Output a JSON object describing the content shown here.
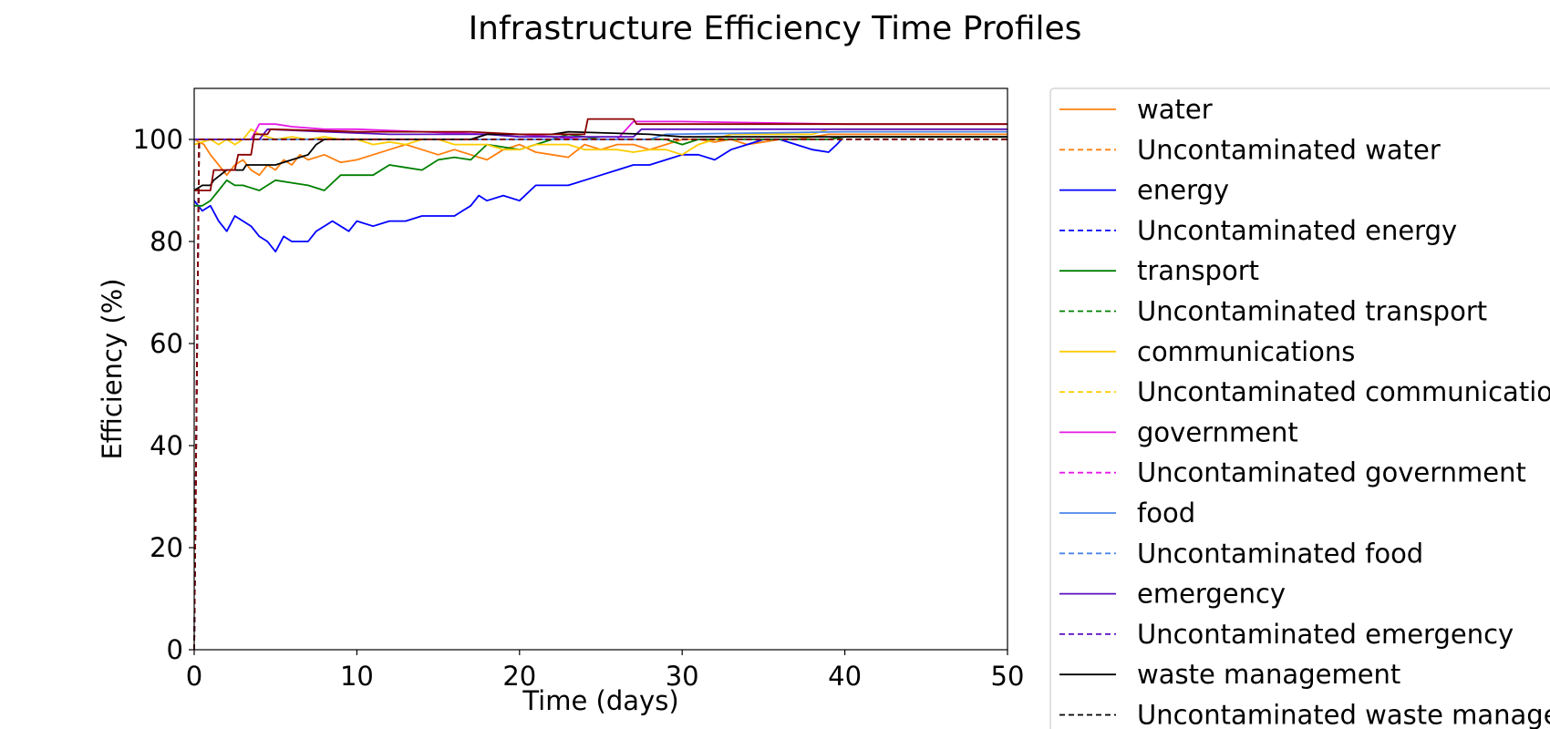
{
  "chart_data": {
    "type": "line",
    "title": "Infrastructure Efficiency Time Profiles",
    "xlabel": "Time (days)",
    "ylabel": "Efficiency (%)",
    "xlim": [
      0,
      50
    ],
    "ylim": [
      0,
      110
    ],
    "xticks": [
      0,
      10,
      20,
      30,
      40,
      50
    ],
    "yticks": [
      0,
      20,
      40,
      60,
      80,
      100
    ],
    "grid": false,
    "legend_position": "right, outside plot",
    "series": [
      {
        "name": "water",
        "color": "#ff7f0e",
        "dash": false,
        "points": [
          [
            0,
            100
          ],
          [
            0.6,
            99
          ],
          [
            1,
            97
          ],
          [
            1.5,
            95
          ],
          [
            2,
            93
          ],
          [
            2.5,
            95
          ],
          [
            3,
            96
          ],
          [
            3.5,
            94
          ],
          [
            4,
            93
          ],
          [
            4.5,
            95
          ],
          [
            5,
            94
          ],
          [
            5.5,
            96
          ],
          [
            6,
            95
          ],
          [
            6.5,
            97
          ],
          [
            7,
            96
          ],
          [
            8,
            97
          ],
          [
            9,
            95.5
          ],
          [
            10,
            96
          ],
          [
            11,
            97
          ],
          [
            12,
            98
          ],
          [
            13,
            99
          ],
          [
            14,
            98
          ],
          [
            15,
            97
          ],
          [
            16,
            98
          ],
          [
            17,
            97
          ],
          [
            18,
            96
          ],
          [
            19,
            98
          ],
          [
            20,
            99
          ],
          [
            21,
            97.5
          ],
          [
            22,
            97
          ],
          [
            23,
            96.5
          ],
          [
            24,
            99
          ],
          [
            25,
            98
          ],
          [
            26,
            99
          ],
          [
            27,
            99
          ],
          [
            28,
            98
          ],
          [
            29,
            99
          ],
          [
            30,
            100
          ],
          [
            31,
            100
          ],
          [
            32,
            99.5
          ],
          [
            33,
            100
          ],
          [
            34,
            99
          ],
          [
            35,
            99.5
          ],
          [
            36,
            100
          ],
          [
            37,
            100
          ],
          [
            38,
            100.5
          ],
          [
            39,
            101
          ],
          [
            40,
            101
          ],
          [
            50,
            101
          ]
        ]
      },
      {
        "name": "Uncontaminated water",
        "color": "#ff7f0e",
        "dash": true,
        "points": [
          [
            0,
            0
          ],
          [
            0.3,
            100
          ],
          [
            50,
            100
          ]
        ]
      },
      {
        "name": "energy",
        "color": "#0000ff",
        "dash": false,
        "points": [
          [
            0,
            88
          ],
          [
            0.5,
            86
          ],
          [
            1,
            87
          ],
          [
            1.5,
            84
          ],
          [
            2,
            82
          ],
          [
            2.5,
            85
          ],
          [
            3,
            84
          ],
          [
            3.5,
            83
          ],
          [
            4,
            81
          ],
          [
            4.5,
            80
          ],
          [
            5,
            78
          ],
          [
            5.5,
            81
          ],
          [
            6,
            80
          ],
          [
            6.5,
            80
          ],
          [
            7,
            80
          ],
          [
            7.5,
            82
          ],
          [
            8,
            83
          ],
          [
            8.5,
            84
          ],
          [
            9,
            83
          ],
          [
            9.5,
            82
          ],
          [
            10,
            84
          ],
          [
            11,
            83
          ],
          [
            12,
            84
          ],
          [
            13,
            84
          ],
          [
            14,
            85
          ],
          [
            15,
            85
          ],
          [
            16,
            85
          ],
          [
            17,
            87
          ],
          [
            17.5,
            89
          ],
          [
            18,
            88
          ],
          [
            19,
            89
          ],
          [
            20,
            88
          ],
          [
            21,
            91
          ],
          [
            22,
            91
          ],
          [
            23,
            91
          ],
          [
            24,
            92
          ],
          [
            25,
            93
          ],
          [
            26,
            94
          ],
          [
            27,
            95
          ],
          [
            28,
            95
          ],
          [
            29,
            96
          ],
          [
            30,
            97
          ],
          [
            31,
            97
          ],
          [
            32,
            96
          ],
          [
            33,
            98
          ],
          [
            34,
            99
          ],
          [
            35,
            100
          ],
          [
            36,
            100
          ],
          [
            37,
            99
          ],
          [
            38,
            98
          ],
          [
            39,
            97.5
          ],
          [
            39.5,
            99
          ],
          [
            39.8,
            100
          ]
        ]
      },
      {
        "name": "Uncontaminated energy",
        "color": "#0000ff",
        "dash": true,
        "points": [
          [
            0,
            0
          ],
          [
            0.3,
            100
          ],
          [
            50,
            100
          ]
        ]
      },
      {
        "name": "transport",
        "color": "#008000",
        "dash": false,
        "points": [
          [
            0,
            87
          ],
          [
            0.5,
            87
          ],
          [
            1,
            88
          ],
          [
            1.5,
            90
          ],
          [
            2,
            92
          ],
          [
            2.5,
            91
          ],
          [
            3,
            91
          ],
          [
            3.5,
            90.5
          ],
          [
            4,
            90
          ],
          [
            5,
            92
          ],
          [
            6,
            91.5
          ],
          [
            7,
            91
          ],
          [
            8,
            90
          ],
          [
            9,
            93
          ],
          [
            10,
            93
          ],
          [
            11,
            93
          ],
          [
            12,
            95
          ],
          [
            13,
            94.5
          ],
          [
            14,
            94
          ],
          [
            15,
            96
          ],
          [
            16,
            96.5
          ],
          [
            17,
            96
          ],
          [
            18,
            99
          ],
          [
            19,
            98.5
          ],
          [
            20,
            98
          ],
          [
            21,
            99
          ],
          [
            22,
            100
          ],
          [
            23,
            101
          ],
          [
            24,
            100.5
          ],
          [
            25,
            100
          ],
          [
            26,
            100
          ],
          [
            27,
            100
          ],
          [
            28,
            100
          ],
          [
            29,
            100
          ],
          [
            30,
            99
          ],
          [
            31,
            100
          ],
          [
            32,
            100
          ],
          [
            33,
            100
          ],
          [
            34,
            100
          ],
          [
            35,
            100
          ],
          [
            36,
            100
          ],
          [
            37,
            100
          ],
          [
            38,
            100
          ],
          [
            39,
            100
          ],
          [
            40,
            100.5
          ],
          [
            50,
            100.5
          ]
        ]
      },
      {
        "name": "Uncontaminated transport",
        "color": "#008000",
        "dash": true,
        "points": [
          [
            0,
            0
          ],
          [
            0.3,
            100
          ],
          [
            50,
            100
          ]
        ]
      },
      {
        "name": "communications",
        "color": "#ffcc00",
        "dash": false,
        "points": [
          [
            0,
            99
          ],
          [
            1,
            100
          ],
          [
            1.5,
            99
          ],
          [
            2,
            100
          ],
          [
            2.5,
            99
          ],
          [
            3,
            100
          ],
          [
            3.5,
            102
          ],
          [
            4,
            101
          ],
          [
            5,
            100
          ],
          [
            6,
            100.5
          ],
          [
            7,
            100
          ],
          [
            8,
            100.5
          ],
          [
            9,
            100
          ],
          [
            10,
            100
          ],
          [
            11,
            99
          ],
          [
            12,
            99.5
          ],
          [
            13,
            99
          ],
          [
            14,
            100
          ],
          [
            15,
            100
          ],
          [
            16,
            99
          ],
          [
            17,
            99
          ],
          [
            18,
            99
          ],
          [
            19,
            98
          ],
          [
            20,
            98
          ],
          [
            21,
            99
          ],
          [
            22,
            99
          ],
          [
            23,
            99
          ],
          [
            24,
            98
          ],
          [
            25,
            98
          ],
          [
            26,
            98
          ],
          [
            27,
            97.5
          ],
          [
            28,
            98
          ],
          [
            29,
            98
          ],
          [
            30,
            97
          ],
          [
            31,
            99
          ],
          [
            32,
            100
          ],
          [
            33,
            101
          ],
          [
            34,
            101
          ],
          [
            35,
            101
          ],
          [
            36,
            101
          ],
          [
            37,
            101
          ],
          [
            38,
            101
          ],
          [
            39,
            102
          ],
          [
            40,
            102
          ],
          [
            50,
            102
          ]
        ]
      },
      {
        "name": "Uncontaminated communications",
        "color": "#ffcc00",
        "dash": true,
        "points": [
          [
            0,
            0
          ],
          [
            0.3,
            100
          ],
          [
            50,
            100
          ]
        ]
      },
      {
        "name": "government",
        "color": "#e619e6",
        "dash": false,
        "points": [
          [
            0,
            100
          ],
          [
            3.5,
            100
          ],
          [
            4,
            103
          ],
          [
            5,
            103
          ],
          [
            6,
            102.5
          ],
          [
            8,
            102
          ],
          [
            10,
            102
          ],
          [
            14,
            101.5
          ],
          [
            18,
            101
          ],
          [
            20,
            101
          ],
          [
            22,
            100.5
          ],
          [
            24,
            100
          ],
          [
            26,
            100
          ],
          [
            27,
            103.5
          ],
          [
            30,
            103.5
          ],
          [
            40,
            103
          ],
          [
            50,
            103
          ]
        ]
      },
      {
        "name": "Uncontaminated government",
        "color": "#e619e6",
        "dash": true,
        "points": [
          [
            0,
            0
          ],
          [
            0.3,
            100
          ],
          [
            50,
            100
          ]
        ]
      },
      {
        "name": "food",
        "color": "#4a86e8",
        "dash": false,
        "points": [
          [
            0,
            100
          ],
          [
            4,
            100
          ],
          [
            10,
            100
          ],
          [
            20,
            100
          ],
          [
            28,
            100
          ],
          [
            29,
            101
          ],
          [
            40,
            101.5
          ],
          [
            50,
            101.5
          ]
        ]
      },
      {
        "name": "Uncontaminated food",
        "color": "#4a86e8",
        "dash": true,
        "points": [
          [
            0,
            0
          ],
          [
            0.3,
            100
          ],
          [
            50,
            100
          ]
        ]
      },
      {
        "name": "emergency",
        "color": "#5b0fbf",
        "dash": false,
        "points": [
          [
            0,
            100
          ],
          [
            4,
            100
          ],
          [
            4.5,
            102
          ],
          [
            8,
            101.5
          ],
          [
            12,
            101
          ],
          [
            18,
            101
          ],
          [
            20,
            100.5
          ],
          [
            27,
            100.5
          ],
          [
            27.5,
            102
          ],
          [
            40,
            102
          ],
          [
            50,
            102
          ]
        ]
      },
      {
        "name": "Uncontaminated emergency",
        "color": "#5b0fbf",
        "dash": true,
        "points": [
          [
            0,
            0
          ],
          [
            0.3,
            100
          ],
          [
            50,
            100
          ]
        ]
      },
      {
        "name": "waste management",
        "color": "#000000",
        "dash": false,
        "points": [
          [
            0,
            90
          ],
          [
            0.5,
            91
          ],
          [
            1,
            91
          ],
          [
            1.2,
            92
          ],
          [
            2,
            94
          ],
          [
            3,
            94
          ],
          [
            3.2,
            95
          ],
          [
            5,
            95
          ],
          [
            6,
            96
          ],
          [
            7,
            97
          ],
          [
            7.5,
            99
          ],
          [
            8,
            100
          ],
          [
            12,
            100
          ],
          [
            17,
            100
          ],
          [
            18,
            101
          ],
          [
            22,
            101
          ],
          [
            23,
            101.5
          ],
          [
            28,
            101
          ],
          [
            30,
            100.5
          ],
          [
            40,
            100.5
          ],
          [
            50,
            100.5
          ]
        ]
      },
      {
        "name": "Uncontaminated waste management",
        "color": "#000000",
        "dash": true,
        "points": [
          [
            0,
            0
          ],
          [
            0.3,
            100
          ],
          [
            50,
            100
          ]
        ]
      },
      {
        "name": "",
        "color": "#8b0000",
        "dash": false,
        "points": [
          [
            0,
            90
          ],
          [
            1,
            90
          ],
          [
            1.2,
            94
          ],
          [
            2.5,
            94
          ],
          [
            2.7,
            97
          ],
          [
            3.5,
            97
          ],
          [
            3.7,
            101
          ],
          [
            4.5,
            101
          ],
          [
            4.7,
            102
          ],
          [
            10,
            101.5
          ],
          [
            17,
            101.5
          ],
          [
            20,
            101
          ],
          [
            24,
            101
          ],
          [
            24.2,
            104
          ],
          [
            27,
            104
          ],
          [
            27.2,
            103
          ],
          [
            40,
            103
          ],
          [
            50,
            103
          ]
        ]
      },
      {
        "name": "",
        "color": "#8b0000",
        "dash": true,
        "points": [
          [
            0,
            0
          ],
          [
            0.3,
            100
          ],
          [
            50,
            100
          ]
        ]
      }
    ]
  }
}
